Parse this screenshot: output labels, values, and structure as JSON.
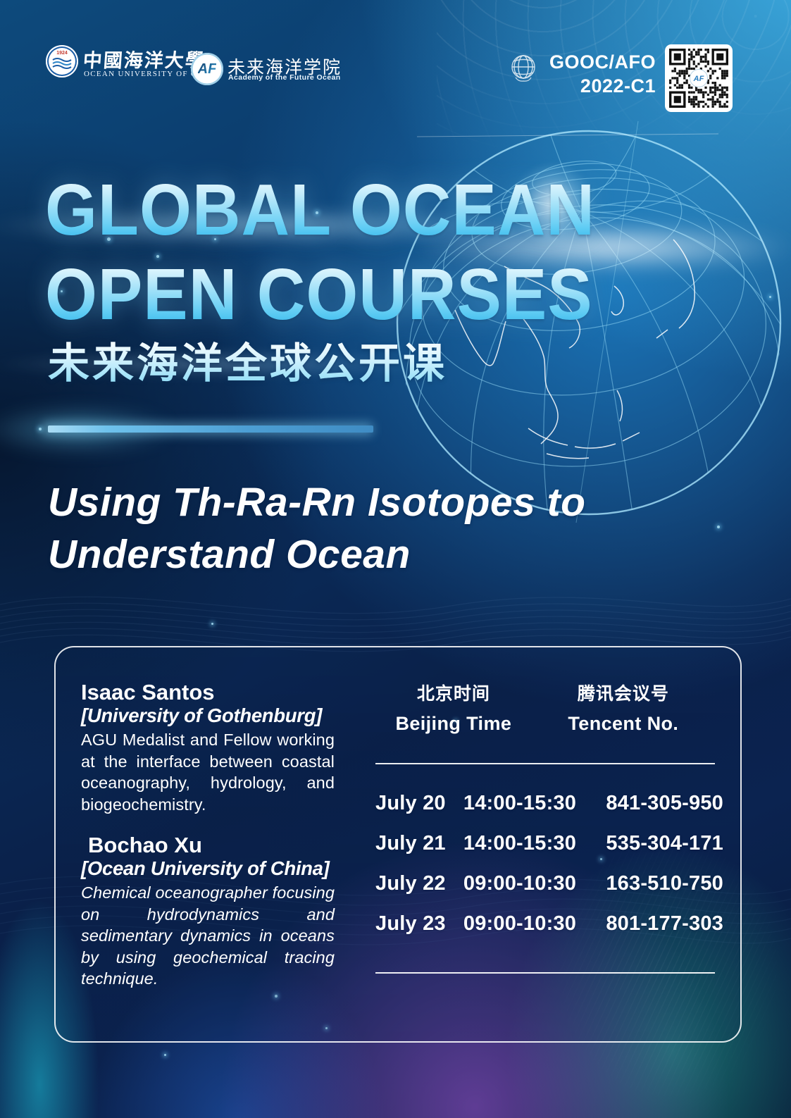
{
  "header": {
    "ouc": {
      "cjk": "中國海洋大學",
      "en": "OCEAN UNIVERSITY OF CHINA",
      "emblem_year": "1924"
    },
    "afo": {
      "badge": "AF",
      "cjk": "未来海洋学院",
      "en": "Academy of the Future Ocean"
    },
    "program_code": {
      "line1": "GOOC/AFO",
      "line2": "2022-C1"
    }
  },
  "title": {
    "line1": "GLOBAL OCEAN",
    "line2": "OPEN COURSES",
    "subtitle_cjk": "未来海洋全球公开课"
  },
  "course": {
    "line1": "Using Th-Ra-Rn Isotopes to",
    "line2": "Understand Ocean"
  },
  "speakers": [
    {
      "name": "Isaac Santos",
      "affiliation": "[University of Gothenburg]",
      "bio": "AGU Medalist and Fellow working at the interface between coastal oceanography, hydrology, and biogeochemistry."
    },
    {
      "name": "Bochao Xu",
      "affiliation": "[Ocean University of China]",
      "bio": "Chemical oceanographer focusing on hydrodynamics and sedimentary dynamics in oceans by using geochemical tracing technique."
    }
  ],
  "schedule": {
    "time_header_cjk": "北京时间",
    "time_header_en": "Beijing Time",
    "meeting_header_cjk": "腾讯会议号",
    "meeting_header_en": "Tencent No.",
    "rows": [
      {
        "date": "July 20",
        "time": "14:00-15:30",
        "meeting_no": "841-305-950"
      },
      {
        "date": "July 21",
        "time": "14:00-15:30",
        "meeting_no": "535-304-171"
      },
      {
        "date": "July 22",
        "time": "09:00-10:30",
        "meeting_no": "163-510-750"
      },
      {
        "date": "July 23",
        "time": "09:00-10:30",
        "meeting_no": "801-177-303"
      }
    ]
  },
  "colors": {
    "bright_cyan_top_right": "#41b5ea",
    "deep_navy": "#0a1f3f",
    "title_cyan": "#2db3ea",
    "divider_blue": "#6fc2ec",
    "purple_glow": "#a455d6",
    "teal_glow": "#2fe0b0",
    "text_white": "#ffffff"
  }
}
